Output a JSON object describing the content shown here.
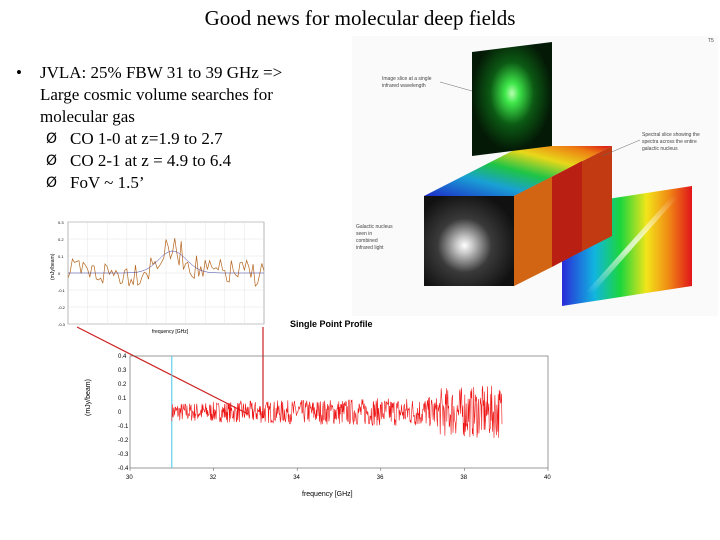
{
  "slide": {
    "title": "Good news for molecular deep fields"
  },
  "bullets": {
    "main_lines": [
      "JVLA: 25% FBW 31 to 39 GHz =>",
      "Large cosmic volume searches for",
      "molecular gas"
    ],
    "bullet_glyph": "•",
    "sub_items": [
      "CO 1-0 at z=1.9 to 2.7",
      "CO 2-1 at z = 4.9 to 6.4",
      "FoV ~ 1.5’"
    ],
    "sub_glyph": "Ø"
  },
  "cube_figure": {
    "label_top": [
      "Image slice at a single",
      "infrared wavelength"
    ],
    "label_right": [
      "Spectral slice showing the",
      "spectra across the entire",
      "galactic nucleus"
    ],
    "label_left": [
      "Galactic nucleus",
      "seen in",
      "combined",
      "infrared light"
    ],
    "credit": "T5"
  },
  "small_plot": {
    "ylabel": "(mJy/beam)",
    "xlabel": "frequency [GHz]",
    "yticks": [
      "0.3",
      "0.2",
      "0.1",
      "0",
      "-0.1",
      "-0.2",
      "-0.3"
    ]
  },
  "chart_data": {
    "type": "line",
    "title": "Single Point Profile",
    "xlabel": "frequency [GHz]",
    "ylabel": "(mJy/beam)",
    "xlim": [
      30,
      40
    ],
    "ylim": [
      -0.4,
      0.4
    ],
    "xticks": [
      "30",
      "32",
      "34",
      "36",
      "38",
      "40"
    ],
    "yticks": [
      "0.4",
      "0.3",
      "0.2",
      "0.1",
      "0",
      "-0.1",
      "-0.2",
      "-0.3",
      "-0.4"
    ],
    "series_color": "#ee1111",
    "band_marker_x": 31.0,
    "marker_color": "#44c8e8",
    "data_x_range": [
      31.0,
      38.9
    ],
    "noise_amplitude": 0.12
  }
}
